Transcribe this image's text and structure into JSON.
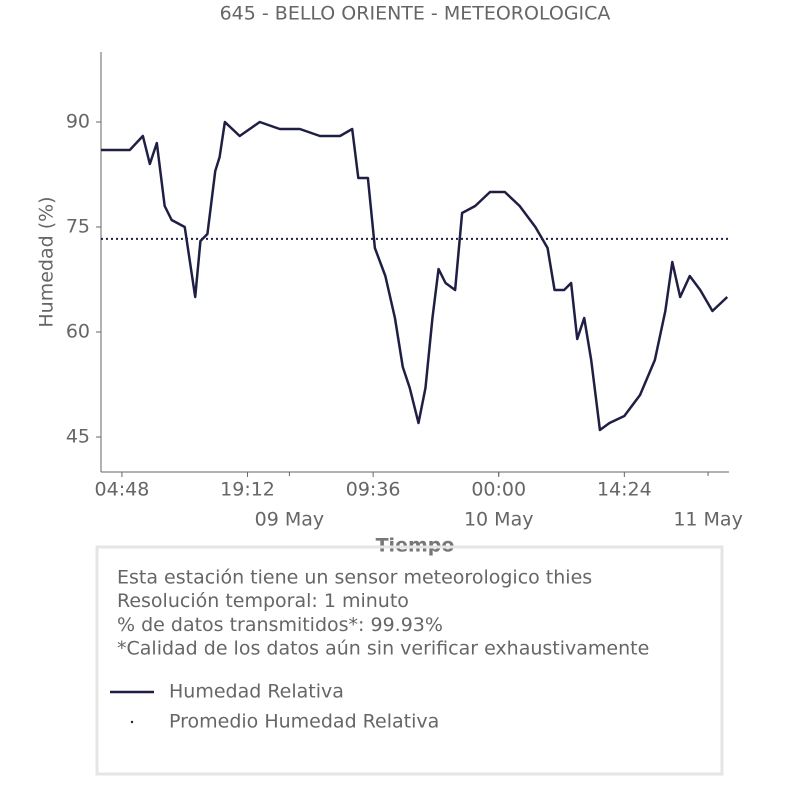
{
  "chart_data": {
    "type": "line",
    "title": "645 - BELLO ORIENTE - METEOROLOGICA",
    "xlabel": "Tiempo",
    "ylabel": "Humedad (%)",
    "x": [
      2.4,
      5.7,
      7.2,
      8,
      8.8,
      9.2,
      9.7,
      10.5,
      12,
      12.6,
      13.2,
      13.8,
      14.6,
      15.5,
      16,
      16.6,
      18.3,
      20.6,
      22.9,
      25.2,
      27.5,
      29.8,
      31.2,
      31.9,
      33,
      33.8,
      35,
      36.1,
      37,
      37.8,
      38.8,
      39.6,
      40.4,
      41.1,
      41.9,
      43,
      43.8,
      45.3,
      47,
      48.7,
      50.4,
      52.2,
      53.6,
      54.4,
      55.5,
      56.3,
      57,
      57.8,
      58.6,
      59.6,
      60.7,
      62.4,
      64.2,
      65.9,
      67.1,
      67.9,
      68.8,
      69.9,
      71.1,
      72.5,
      74.2
    ],
    "series": [
      {
        "name": "Humedad Relativa",
        "color": "#1f1f45",
        "values": [
          86,
          86,
          88,
          84,
          87,
          83,
          78,
          76,
          75,
          70,
          65,
          73,
          74,
          83,
          85,
          90,
          88,
          90,
          89,
          89,
          88,
          88,
          89,
          82,
          82,
          72,
          68,
          62,
          55,
          52,
          47,
          52,
          62,
          69,
          67,
          66,
          77,
          78,
          80,
          80,
          78,
          75,
          72,
          66,
          66,
          67,
          59,
          62,
          56,
          46,
          47,
          48,
          51,
          56,
          63,
          70,
          65,
          68,
          66,
          63,
          65
        ]
      }
    ],
    "hlines": [
      {
        "name": "Promedio Humedad Relativa",
        "color": "#1f1f45",
        "value": 73.3
      }
    ],
    "xlim": [
      2.4,
      74.4
    ],
    "ylim": [
      40,
      100
    ],
    "xticks": [
      {
        "value": 4.8,
        "label": "04:48"
      },
      {
        "value": 19.2,
        "label": "19:12"
      },
      {
        "value": 33.6,
        "label": "09:36"
      },
      {
        "value": 48,
        "label": "00:00"
      },
      {
        "value": 62.4,
        "label": "14:24"
      }
    ],
    "day_ticks": [
      {
        "value": 24,
        "label": "09 May"
      },
      {
        "value": 48,
        "label": "10 May"
      },
      {
        "value": 72,
        "label": "11 May"
      }
    ],
    "yticks": [
      45,
      60,
      75,
      90
    ],
    "notes": [
      "Esta estación tiene un sensor meteorologico thies",
      "Resolución temporal: 1 minuto",
      "% de datos transmitidos*: 99.93%",
      "*Calidad de los datos aún sin verificar exhaustivamente"
    ]
  }
}
